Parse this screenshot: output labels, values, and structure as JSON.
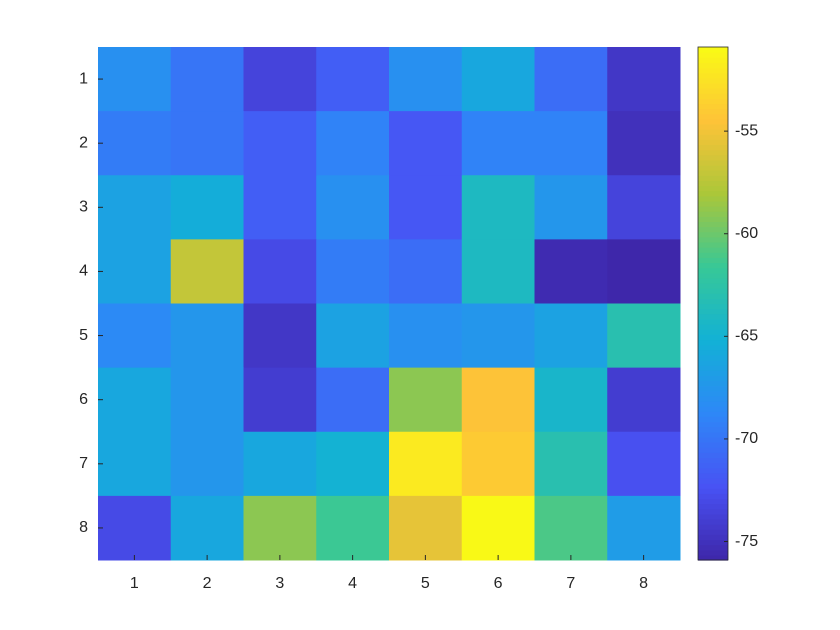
{
  "chart_data": {
    "type": "heatmap",
    "x": [
      1,
      2,
      3,
      4,
      5,
      6,
      7,
      8
    ],
    "y": [
      1,
      2,
      3,
      4,
      5,
      6,
      7,
      8
    ],
    "values": [
      [
        -68,
        -70,
        -73.5,
        -71.5,
        -68,
        -66,
        -70.5,
        -74.5
      ],
      [
        -69.5,
        -70,
        -71.5,
        -69,
        -72,
        -69,
        -69,
        -75
      ],
      [
        -66.5,
        -65.5,
        -71.5,
        -68,
        -72,
        -64,
        -67.5,
        -73.5
      ],
      [
        -66.5,
        -57,
        -73,
        -69.5,
        -70.5,
        -64,
        -75.5,
        -75.8
      ],
      [
        -68.5,
        -67.5,
        -74.5,
        -66.5,
        -68,
        -67.5,
        -66.5,
        -63
      ],
      [
        -66,
        -67.5,
        -74,
        -70.5,
        -59,
        -54.5,
        -64.5,
        -74
      ],
      [
        -66,
        -67.5,
        -66,
        -65,
        -52,
        -54,
        -63,
        -72.5
      ],
      [
        -73,
        -66,
        -59,
        -61.5,
        -55.5,
        -51,
        -61,
        -67
      ]
    ],
    "xlim": [
      0.5,
      8.5
    ],
    "ylim": [
      0.5,
      8.5
    ],
    "ydir": "reverse",
    "xticks": [
      1,
      2,
      3,
      4,
      5,
      6,
      7,
      8
    ],
    "yticks": [
      1,
      2,
      3,
      4,
      5,
      6,
      7,
      8
    ],
    "colormap": "parula",
    "clim": [
      -75.9,
      -50.9
    ],
    "cticks": [
      -75,
      -70,
      -65,
      -60,
      -55
    ]
  }
}
